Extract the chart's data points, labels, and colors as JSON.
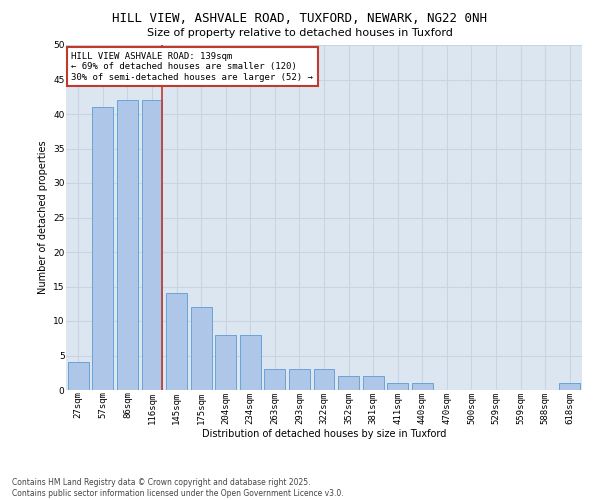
{
  "title_line1": "HILL VIEW, ASHVALE ROAD, TUXFORD, NEWARK, NG22 0NH",
  "title_line2": "Size of property relative to detached houses in Tuxford",
  "xlabel": "Distribution of detached houses by size in Tuxford",
  "ylabel": "Number of detached properties",
  "categories": [
    "27sqm",
    "57sqm",
    "86sqm",
    "116sqm",
    "145sqm",
    "175sqm",
    "204sqm",
    "234sqm",
    "263sqm",
    "293sqm",
    "322sqm",
    "352sqm",
    "381sqm",
    "411sqm",
    "440sqm",
    "470sqm",
    "500sqm",
    "529sqm",
    "559sqm",
    "588sqm",
    "618sqm"
  ],
  "values": [
    4,
    41,
    42,
    42,
    14,
    12,
    8,
    8,
    3,
    3,
    3,
    2,
    2,
    1,
    1,
    0,
    0,
    0,
    0,
    0,
    1
  ],
  "bar_color": "#aec6e8",
  "bar_edge_color": "#5b9bd5",
  "highlight_line_color": "#c0392b",
  "highlight_line_index": 3,
  "annotation_box_text": "HILL VIEW ASHVALE ROAD: 139sqm\n← 69% of detached houses are smaller (120)\n30% of semi-detached houses are larger (52) →",
  "annotation_box_color": "#c0392b",
  "annotation_box_bg": "#ffffff",
  "ylim": [
    0,
    50
  ],
  "yticks": [
    0,
    5,
    10,
    15,
    20,
    25,
    30,
    35,
    40,
    45,
    50
  ],
  "grid_color": "#c8d4e3",
  "bg_color": "#dce6f1",
  "footer_text": "Contains HM Land Registry data © Crown copyright and database right 2025.\nContains public sector information licensed under the Open Government Licence v3.0.",
  "title_fontsize": 9,
  "subtitle_fontsize": 8,
  "label_fontsize": 7,
  "tick_fontsize": 6.5,
  "footer_fontsize": 5.5,
  "ann_fontsize": 6.5
}
